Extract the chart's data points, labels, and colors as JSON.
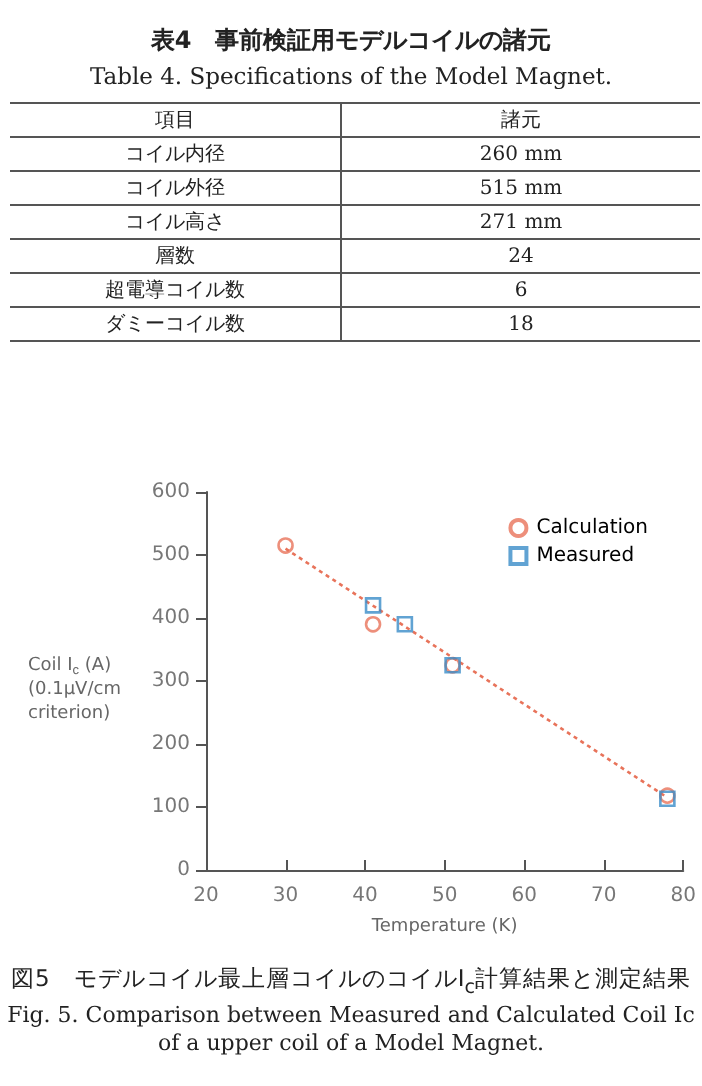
{
  "chart_data": [
    {
      "type": "other",
      "title": "表4　事前検証用モデルコイルの諸元",
      "subtitle": "Table 4. Specifications of the Model Magnet.",
      "annotations": [
        "項目",
        "諸元",
        "コイル内径",
        "260  mm",
        "コイル外径",
        "515  mm",
        "コイル高さ",
        "271  mm",
        "層数",
        "24",
        "超電導コイル数",
        "6",
        "ダミーコイル数",
        "18"
      ]
    },
    {
      "type": "scatter",
      "xlabel": "Temperature (K)",
      "ylabel": "Coil I$_{c}$ (A)\n(0.1μV/cm\ncriterion)",
      "xlim": [
        20,
        80
      ],
      "xticks": [
        20,
        30,
        40,
        50,
        60,
        70,
        80
      ],
      "ylim": [
        0,
        600
      ],
      "yticks": [
        0,
        100,
        200,
        300,
        400,
        500,
        600
      ],
      "grid": false,
      "legend": "top right",
      "series": [
        {
          "name": "Calculation",
          "color": "#e8735a",
          "marker": "circle",
          "x": [
            30,
            41,
            51,
            78
          ],
          "values": [
            515,
            390,
            325,
            118
          ]
        },
        {
          "name": "Measured",
          "color": "#3a8cc8",
          "marker": "square",
          "x": [
            41,
            45,
            51,
            78
          ],
          "values": [
            420,
            390,
            325,
            113
          ]
        },
        {
          "type": "line",
          "color": "#e8735a",
          "line_style": "dotted",
          "marker": "none",
          "x": [
            30,
            78
          ],
          "values": [
            510,
            115
          ]
        }
      ],
      "annotations": [
        "図5　モデルコイル最上層コイルのコイルI$_{c}$計算結果と測定結果",
        "Fig. 5. Comparison between Measured and Calculated Coil Ic of a upper coil of a Model Magnet."
      ]
    }
  ]
}
